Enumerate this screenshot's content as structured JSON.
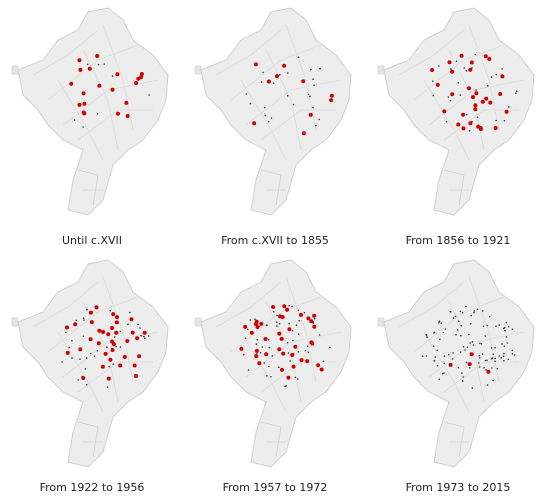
{
  "panels": [
    {
      "caption": "Until c.XVII"
    },
    {
      "caption": "From c.XVII to 1855"
    },
    {
      "caption": "From 1856 to 1921"
    },
    {
      "caption": "From 1922 to 1956"
    },
    {
      "caption": "From 1957 to 1972"
    },
    {
      "caption": "From 1973 to 2015"
    }
  ]
}
